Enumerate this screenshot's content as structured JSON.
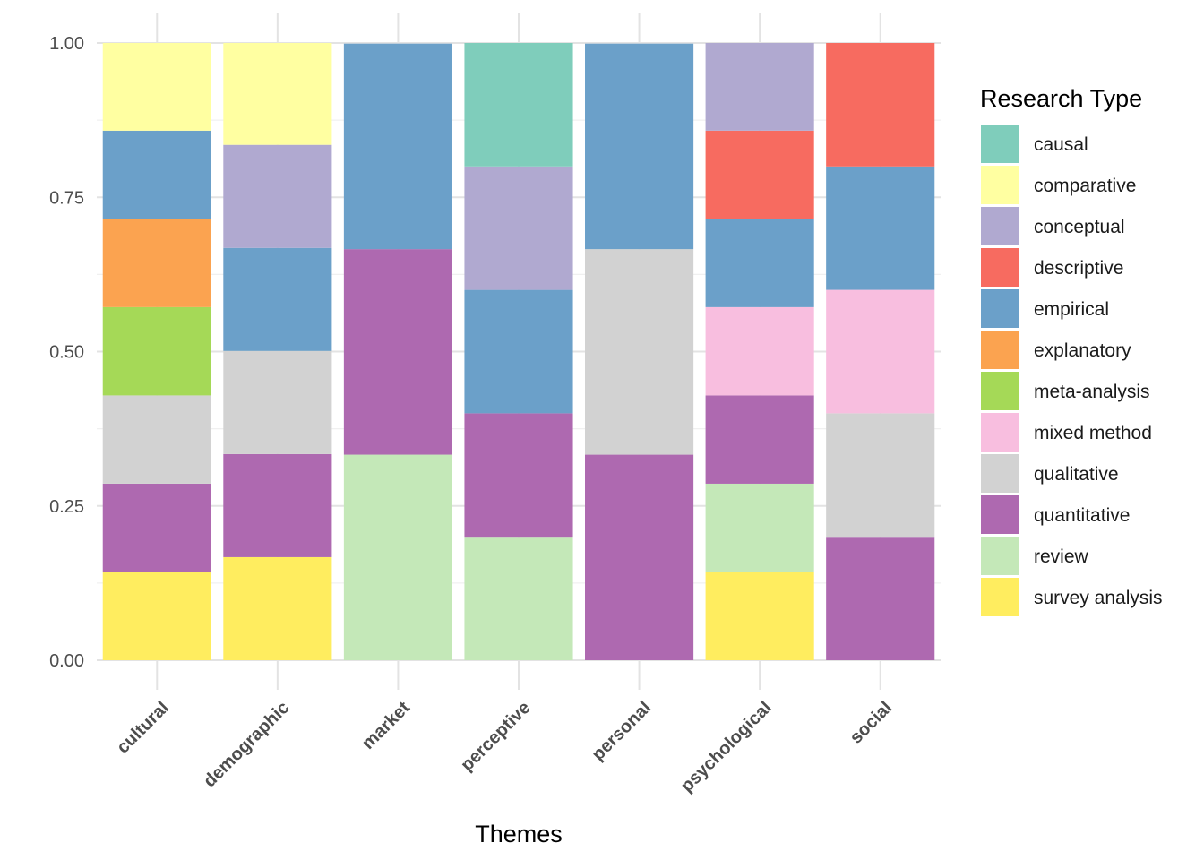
{
  "chart_data": {
    "type": "bar",
    "stacked": true,
    "normalized": true,
    "title": "",
    "xlabel": "Themes",
    "ylabel": "",
    "ylim": [
      0,
      1
    ],
    "y_ticks": [
      "0.00",
      "0.25",
      "0.50",
      "0.75",
      "1.00"
    ],
    "y_tick_values": [
      0,
      0.25,
      0.5,
      0.75,
      1.0
    ],
    "grid": true,
    "legend_title": "Research Type",
    "legend_position": "right",
    "categories": [
      "cultural",
      "demographic",
      "market",
      "perceptive",
      "personal",
      "psychological",
      "social"
    ],
    "series": [
      {
        "name": "causal",
        "color": "#7FCDBB",
        "values": [
          0,
          0,
          0,
          0.2,
          0,
          0,
          0
        ]
      },
      {
        "name": "comparative",
        "color": "#FFFFA1",
        "values": [
          0.143,
          0.167,
          0,
          0,
          0,
          0,
          0
        ]
      },
      {
        "name": "conceptual",
        "color": "#B0A9D0",
        "values": [
          0,
          0.167,
          0,
          0.2,
          0,
          0.143,
          0
        ]
      },
      {
        "name": "descriptive",
        "color": "#F76B60",
        "values": [
          0,
          0,
          0,
          0,
          0,
          0.143,
          0.2
        ]
      },
      {
        "name": "empirical",
        "color": "#6BA0C9",
        "values": [
          0.143,
          0.167,
          0.333,
          0.2,
          0.333,
          0.143,
          0.2
        ]
      },
      {
        "name": "explanatory",
        "color": "#FBA350",
        "values": [
          0.143,
          0,
          0,
          0,
          0,
          0,
          0
        ]
      },
      {
        "name": "meta-analysis",
        "color": "#A5D957",
        "values": [
          0.143,
          0,
          0,
          0,
          0,
          0,
          0
        ]
      },
      {
        "name": "mixed method",
        "color": "#F8BEDF",
        "values": [
          0,
          0,
          0,
          0,
          0,
          0.143,
          0.2
        ]
      },
      {
        "name": "qualitative",
        "color": "#D2D2D2",
        "values": [
          0.143,
          0.167,
          0,
          0,
          0.333,
          0,
          0.2
        ]
      },
      {
        "name": "quantitative",
        "color": "#AE69B0",
        "values": [
          0.143,
          0.167,
          0.333,
          0.2,
          0.333,
          0.143,
          0.2
        ]
      },
      {
        "name": "review",
        "color": "#C4E8B8",
        "values": [
          0,
          0,
          0.333,
          0.2,
          0,
          0.143,
          0
        ]
      },
      {
        "name": "survey analysis",
        "color": "#FFED5F",
        "values": [
          0.143,
          0.167,
          0,
          0,
          0,
          0.143,
          0
        ]
      }
    ]
  }
}
